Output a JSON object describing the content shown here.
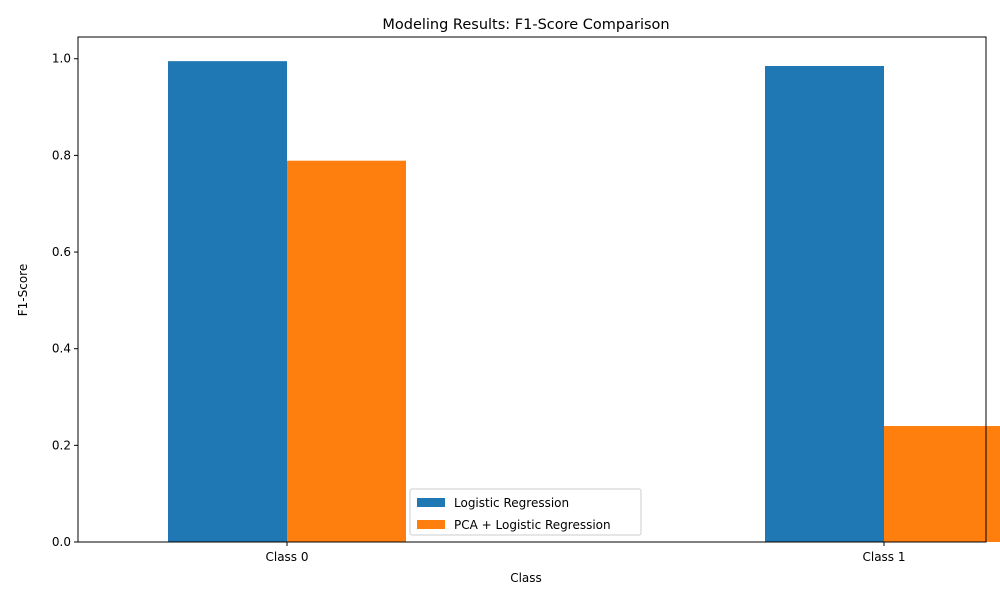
{
  "chart_data": {
    "type": "bar",
    "title": "Modeling Results: F1-Score Comparison",
    "xlabel": "Class",
    "ylabel": "F1-Score",
    "categories": [
      "Class 0",
      "Class 1"
    ],
    "series": [
      {
        "name": "Logistic Regression",
        "values": [
          0.995,
          0.985
        ]
      },
      {
        "name": "PCA + Logistic Regression",
        "values": [
          0.789,
          0.24
        ]
      }
    ],
    "ylim": [
      0,
      1.045
    ],
    "yticks": [
      0.0,
      0.2,
      0.4,
      0.6,
      0.8,
      1.0
    ],
    "ytick_labels": [
      "0.0",
      "0.2",
      "0.4",
      "0.6",
      "0.8",
      "1.0"
    ],
    "legend_position": "lower-center",
    "grid": false,
    "colors": [
      "#1f77b4",
      "#ff7f0e"
    ]
  }
}
